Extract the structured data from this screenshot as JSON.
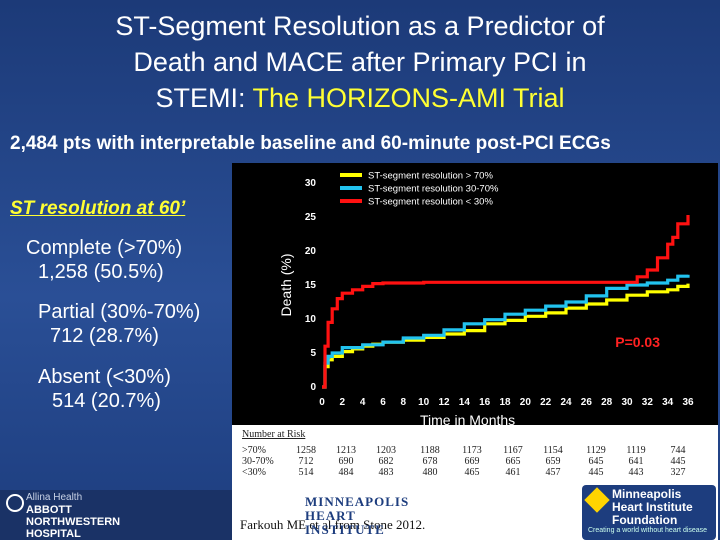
{
  "header": {
    "title_line1": "ST-Segment Resolution as a Predictor of",
    "title_line2": "Death and MACE after Primary PCI in",
    "title_line3_plain": "STEMI: ",
    "title_line3_highlight": "The HORIZONS-AMI Trial",
    "subtitle": "2,484 pts with interpretable baseline and 60-minute post-PCI ECGs"
  },
  "groups": {
    "heading": "ST resolution at 60’",
    "complete_label": "Complete (>70%)",
    "complete_count": "1,258 (50.5%)",
    "partial_label": "Partial (30%-70%)",
    "partial_count": "712 (28.7%)",
    "absent_label": "Absent (<30%)",
    "absent_count": "514 (20.7%)"
  },
  "chart_data": {
    "type": "line",
    "xlabel": "Time in Months",
    "ylabel": "Death (%)",
    "xlim": [
      0,
      36
    ],
    "ylim": [
      0,
      30
    ],
    "x_ticks": [
      0,
      2,
      4,
      6,
      8,
      10,
      12,
      14,
      16,
      18,
      20,
      22,
      24,
      26,
      28,
      30,
      32,
      34,
      36
    ],
    "y_ticks": [
      0,
      5,
      10,
      15,
      20,
      25,
      30
    ],
    "annotation": "P=0.03",
    "legend_position": "top",
    "series": [
      {
        "name": "ST-segment resolution  > 70%",
        "color": "#ffff00",
        "x": [
          0,
          0.3,
          0.6,
          1,
          2,
          3,
          4,
          5,
          6,
          8,
          10,
          12,
          14,
          16,
          18,
          20,
          22,
          24,
          26,
          28,
          30,
          32,
          34,
          35,
          36
        ],
        "y": [
          0,
          3.0,
          4.0,
          4.5,
          5.2,
          5.6,
          6.0,
          6.3,
          6.6,
          6.9,
          7.3,
          7.8,
          8.3,
          9.3,
          9.8,
          10.4,
          10.9,
          11.6,
          12.2,
          12.8,
          13.5,
          14.0,
          14.3,
          14.8,
          15.2
        ]
      },
      {
        "name": "ST-segment resolution  30-70%",
        "color": "#22c3ef",
        "x": [
          0,
          0.3,
          0.6,
          1,
          2,
          4,
          6,
          8,
          10,
          12,
          14,
          16,
          18,
          20,
          22,
          24,
          26,
          28,
          30,
          32,
          34,
          35,
          36
        ],
        "y": [
          0,
          3.5,
          4.5,
          5.0,
          5.8,
          6.2,
          6.6,
          7.2,
          7.6,
          8.4,
          9.3,
          9.9,
          10.7,
          11.3,
          11.9,
          12.5,
          13.4,
          14.5,
          15.0,
          15.3,
          15.7,
          16.3,
          16.5
        ]
      },
      {
        "name": "ST-segment resolution   < 30%",
        "color": "#ff1111",
        "x": [
          0,
          0.3,
          0.6,
          1,
          1.5,
          2,
          3,
          4,
          5,
          6,
          10,
          20,
          30,
          31,
          32,
          33,
          34,
          34.5,
          35,
          36
        ],
        "y": [
          0,
          6.0,
          9.5,
          11.5,
          13.0,
          13.8,
          14.3,
          14.8,
          15.2,
          15.3,
          15.4,
          15.4,
          15.4,
          16.2,
          17.2,
          19.0,
          21.0,
          22.0,
          24.0,
          25.3
        ]
      }
    ]
  },
  "risk_table": {
    "title": "Number at Risk",
    "row_labels": [
      ">70%",
      "30-70%",
      "<30%"
    ],
    "columns": [
      [
        "1258",
        "712",
        "514"
      ],
      [
        "1213",
        "690",
        "484"
      ],
      [
        "1203",
        "682",
        "483"
      ],
      [
        "1188",
        "678",
        "480"
      ],
      [
        "1173",
        "669",
        "465"
      ],
      [
        "1167",
        "665",
        "461"
      ],
      [
        "1154",
        "659",
        "457"
      ],
      [
        "1129",
        "645",
        "445"
      ],
      [
        "1119",
        "641",
        "443"
      ],
      [
        "744",
        "445",
        "327"
      ]
    ]
  },
  "citation": "Farkouh ME et al from Stone 2012.",
  "logos": {
    "allina_line1": "Allina Health",
    "allina_line2": "ABBOTT",
    "allina_line3": "NORTHWESTERN",
    "allina_line4": "HOSPITAL",
    "mhi_line1": "MINNEAPOLIS",
    "mhi_line2": "HEART",
    "mhi_line3": "INSTITUTE",
    "mhif_line1": "Minneapolis",
    "mhif_line2": "Heart Institute",
    "mhif_line3": "Foundation",
    "mhif_tagline": "Creating a world without heart disease"
  }
}
